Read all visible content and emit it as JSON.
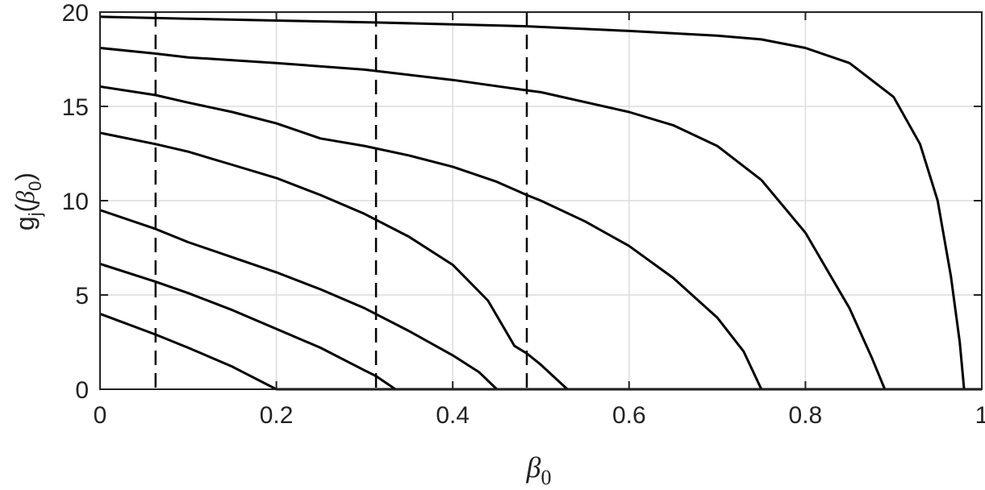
{
  "chart_data": {
    "type": "line",
    "title": "",
    "xlabel": {
      "symbol": "β",
      "sub": "0"
    },
    "ylabel": {
      "fn": "g",
      "fn_sub": "j",
      "open": "(",
      "symbol": "β",
      "sub": "0",
      "close": ")"
    },
    "xlim": [
      0,
      1
    ],
    "ylim": [
      0,
      20
    ],
    "x_ticks": [
      "0",
      "0.2",
      "0.4",
      "0.6",
      "0.8",
      "1"
    ],
    "y_ticks": [
      "0",
      "5",
      "10",
      "15",
      "20"
    ],
    "grid": true,
    "legend": "none",
    "colors": {
      "line": "#000000",
      "grid": "#dcdcdc",
      "axis": "#222222"
    },
    "vertical_dashed_lines_x": [
      0.063,
      0.313,
      0.484
    ],
    "series": [
      {
        "points": [
          [
            0,
            4.0
          ],
          [
            0.063,
            2.9
          ],
          [
            0.1,
            2.2
          ],
          [
            0.15,
            1.2
          ],
          [
            0.2,
            0.0
          ],
          [
            1,
            0.0
          ]
        ]
      },
      {
        "points": [
          [
            0,
            6.65
          ],
          [
            0.063,
            5.7
          ],
          [
            0.1,
            5.1
          ],
          [
            0.15,
            4.2
          ],
          [
            0.2,
            3.2
          ],
          [
            0.25,
            2.2
          ],
          [
            0.3,
            1.0
          ],
          [
            0.313,
            0.7
          ],
          [
            0.335,
            0.0
          ],
          [
            1,
            0.0
          ]
        ]
      },
      {
        "points": [
          [
            0,
            9.5
          ],
          [
            0.063,
            8.5
          ],
          [
            0.1,
            7.8
          ],
          [
            0.15,
            7.0
          ],
          [
            0.2,
            6.2
          ],
          [
            0.25,
            5.3
          ],
          [
            0.3,
            4.3
          ],
          [
            0.35,
            3.1
          ],
          [
            0.4,
            1.8
          ],
          [
            0.43,
            0.9
          ],
          [
            0.45,
            0.0
          ],
          [
            1,
            0.0
          ]
        ]
      },
      {
        "points": [
          [
            0,
            13.6
          ],
          [
            0.063,
            13.0
          ],
          [
            0.1,
            12.6
          ],
          [
            0.15,
            11.9
          ],
          [
            0.2,
            11.2
          ],
          [
            0.25,
            10.3
          ],
          [
            0.3,
            9.3
          ],
          [
            0.35,
            8.1
          ],
          [
            0.4,
            6.6
          ],
          [
            0.44,
            4.7
          ],
          [
            0.47,
            2.3
          ],
          [
            0.484,
            1.9
          ],
          [
            0.5,
            1.3
          ],
          [
            0.53,
            0.0
          ],
          [
            1,
            0.0
          ]
        ]
      },
      {
        "points": [
          [
            0,
            16.05
          ],
          [
            0.063,
            15.6
          ],
          [
            0.1,
            15.2
          ],
          [
            0.15,
            14.7
          ],
          [
            0.2,
            14.1
          ],
          [
            0.25,
            13.3
          ],
          [
            0.3,
            12.9
          ],
          [
            0.35,
            12.4
          ],
          [
            0.4,
            11.8
          ],
          [
            0.45,
            11.0
          ],
          [
            0.484,
            10.3
          ],
          [
            0.5,
            10.0
          ],
          [
            0.55,
            8.9
          ],
          [
            0.6,
            7.6
          ],
          [
            0.65,
            5.9
          ],
          [
            0.7,
            3.8
          ],
          [
            0.73,
            2.0
          ],
          [
            0.75,
            0.0
          ],
          [
            1,
            0.0
          ]
        ]
      },
      {
        "points": [
          [
            0,
            18.1
          ],
          [
            0.063,
            17.8
          ],
          [
            0.1,
            17.6
          ],
          [
            0.2,
            17.3
          ],
          [
            0.3,
            16.95
          ],
          [
            0.4,
            16.4
          ],
          [
            0.484,
            15.85
          ],
          [
            0.5,
            15.75
          ],
          [
            0.6,
            14.7
          ],
          [
            0.65,
            14.0
          ],
          [
            0.7,
            12.9
          ],
          [
            0.75,
            11.1
          ],
          [
            0.8,
            8.3
          ],
          [
            0.85,
            4.3
          ],
          [
            0.875,
            1.7
          ],
          [
            0.89,
            0.0
          ],
          [
            1,
            0.0
          ]
        ]
      },
      {
        "points": [
          [
            0,
            19.75
          ],
          [
            0.1,
            19.65
          ],
          [
            0.2,
            19.55
          ],
          [
            0.313,
            19.45
          ],
          [
            0.4,
            19.35
          ],
          [
            0.484,
            19.25
          ],
          [
            0.6,
            19.0
          ],
          [
            0.7,
            18.75
          ],
          [
            0.75,
            18.55
          ],
          [
            0.8,
            18.1
          ],
          [
            0.85,
            17.3
          ],
          [
            0.9,
            15.5
          ],
          [
            0.93,
            13.0
          ],
          [
            0.95,
            10.0
          ],
          [
            0.965,
            6.0
          ],
          [
            0.975,
            2.5
          ],
          [
            0.98,
            0.0
          ],
          [
            1,
            0.0
          ]
        ]
      }
    ]
  }
}
